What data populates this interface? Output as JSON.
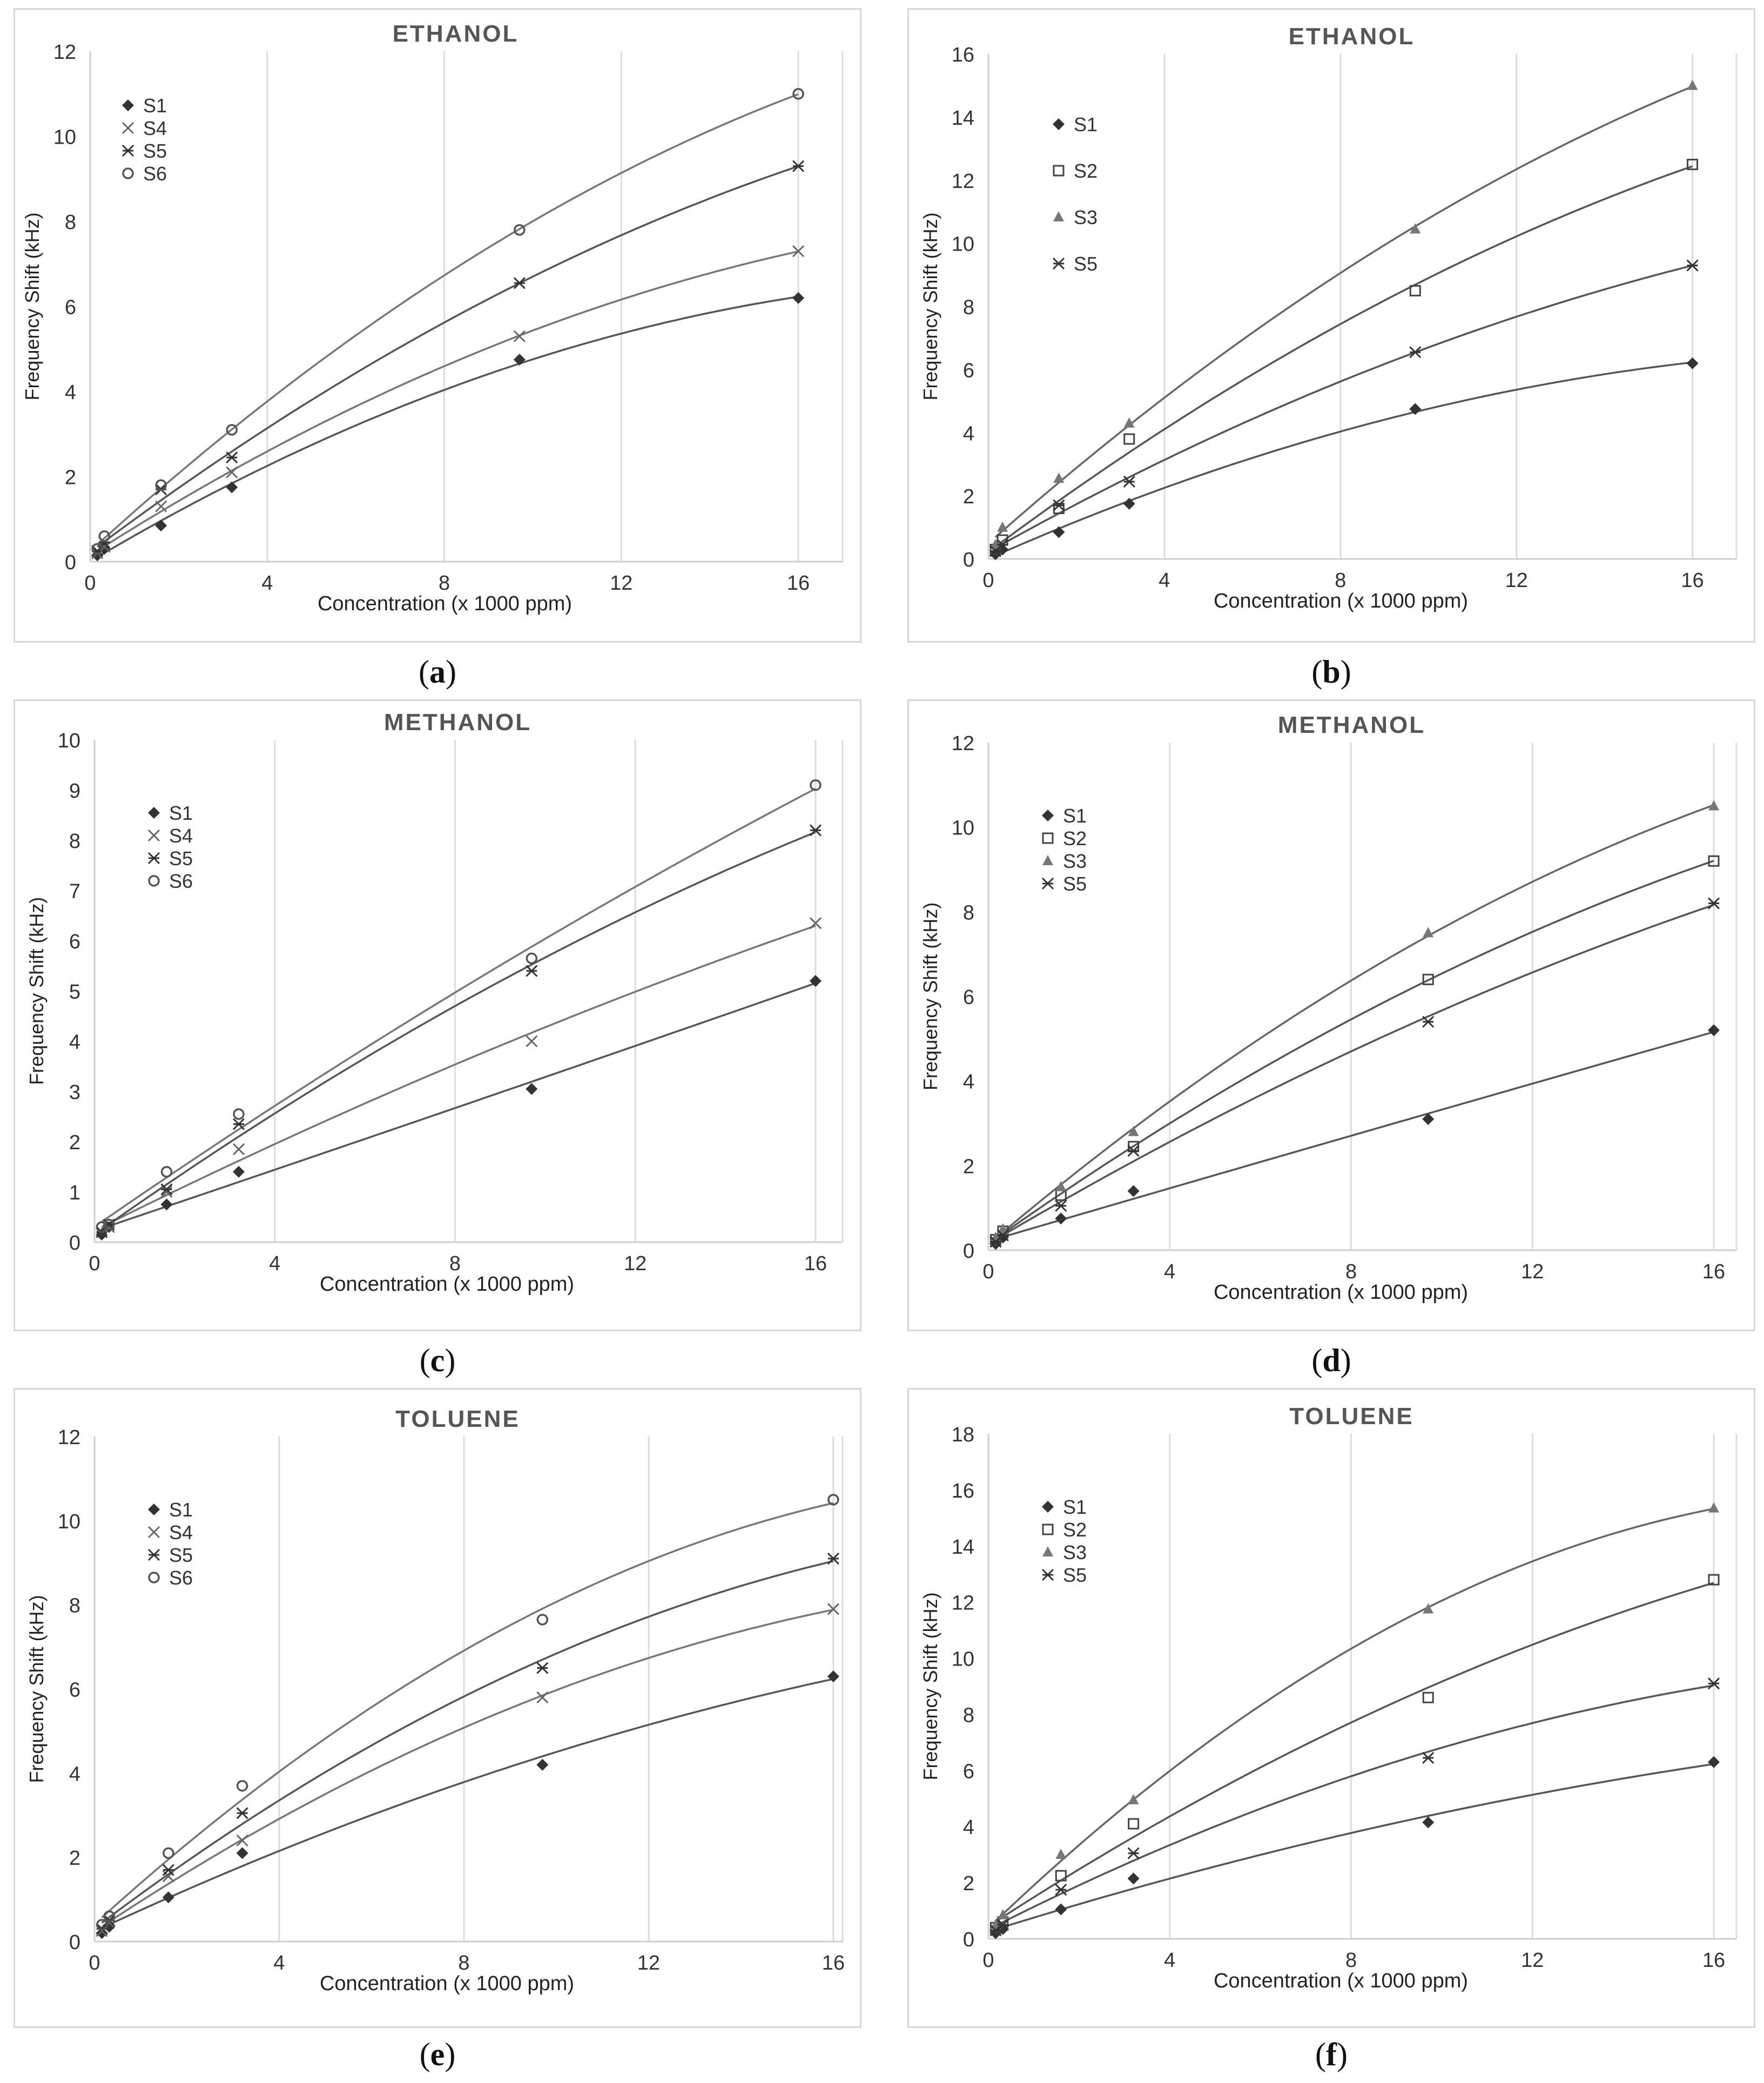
{
  "figure": {
    "panels": [
      {
        "id": "a",
        "label": "a"
      },
      {
        "id": "b",
        "label": "b"
      },
      {
        "id": "c",
        "label": "c"
      },
      {
        "id": "d",
        "label": "d"
      },
      {
        "id": "e",
        "label": "e"
      },
      {
        "id": "f",
        "label": "f"
      }
    ]
  },
  "chart_data": [
    {
      "id": "a",
      "type": "scatter",
      "title": "ETHANOL",
      "xlabel": "Concentration (x 1000 ppm)",
      "ylabel": "Frequency Shift (kHz)",
      "xlim": [
        0,
        17
      ],
      "ylim": [
        0,
        12
      ],
      "xticks": [
        0,
        4,
        8,
        12,
        16
      ],
      "yticks": [
        0,
        2,
        4,
        6,
        8,
        10,
        12
      ],
      "grid": "vertical",
      "legend_position": "top-left",
      "trendline": "polynomial",
      "x": [
        0.16,
        0.32,
        1.6,
        3.2,
        9.7,
        16
      ],
      "series": [
        {
          "name": "S1",
          "marker": "diamond",
          "values": [
            0.15,
            0.3,
            0.85,
            1.75,
            4.75,
            6.2
          ]
        },
        {
          "name": "S4",
          "marker": "x",
          "values": [
            0.2,
            0.35,
            1.3,
            2.1,
            5.3,
            7.3
          ]
        },
        {
          "name": "S5",
          "marker": "star",
          "values": [
            0.25,
            0.45,
            1.7,
            2.45,
            6.55,
            9.3
          ]
        },
        {
          "name": "S6",
          "marker": "circle",
          "values": [
            0.3,
            0.6,
            1.8,
            3.1,
            7.8,
            11.0
          ]
        }
      ]
    },
    {
      "id": "b",
      "type": "scatter",
      "title": "ETHANOL",
      "xlabel": "Concentration (x 1000 ppm)",
      "ylabel": "Frequency Shift (kHz)",
      "xlim": [
        0,
        17
      ],
      "ylim": [
        0,
        16
      ],
      "xticks": [
        0,
        4,
        8,
        12,
        16
      ],
      "yticks": [
        0,
        2,
        4,
        6,
        8,
        10,
        12,
        14,
        16
      ],
      "grid": "vertical",
      "legend_position": "top-left",
      "trendline": "polynomial",
      "x": [
        0.16,
        0.32,
        1.6,
        3.2,
        9.7,
        16
      ],
      "series": [
        {
          "name": "S1",
          "marker": "diamond",
          "values": [
            0.15,
            0.3,
            0.85,
            1.75,
            4.75,
            6.2
          ]
        },
        {
          "name": "S2",
          "marker": "square",
          "values": [
            0.3,
            0.6,
            1.6,
            3.8,
            8.5,
            12.5
          ]
        },
        {
          "name": "S3",
          "marker": "triangle",
          "values": [
            0.45,
            1.0,
            2.55,
            4.3,
            10.45,
            15.0
          ]
        },
        {
          "name": "S5",
          "marker": "star",
          "values": [
            0.25,
            0.45,
            1.7,
            2.45,
            6.55,
            9.3
          ]
        }
      ]
    },
    {
      "id": "c",
      "type": "scatter",
      "title": "METHANOL",
      "xlabel": "Concentration (x 1000 ppm)",
      "ylabel": "Frequency Shift (kHz)",
      "xlim": [
        0,
        16.6
      ],
      "ylim": [
        0,
        10
      ],
      "xticks": [
        0,
        4,
        8,
        12,
        16
      ],
      "yticks": [
        0,
        1,
        2,
        3,
        4,
        5,
        6,
        7,
        8,
        9,
        10
      ],
      "grid": "vertical",
      "legend_position": "top-left",
      "trendline": "polynomial",
      "x": [
        0.16,
        0.32,
        1.6,
        3.2,
        9.7,
        16
      ],
      "series": [
        {
          "name": "S1",
          "marker": "diamond",
          "values": [
            0.15,
            0.3,
            0.75,
            1.4,
            3.05,
            5.2
          ]
        },
        {
          "name": "S4",
          "marker": "x",
          "values": [
            0.2,
            0.3,
            1.0,
            1.85,
            4.0,
            6.35
          ]
        },
        {
          "name": "S5",
          "marker": "star",
          "values": [
            0.2,
            0.35,
            1.05,
            2.35,
            5.4,
            8.2
          ]
        },
        {
          "name": "S6",
          "marker": "circle",
          "values": [
            0.3,
            0.35,
            1.4,
            2.55,
            5.65,
            9.1
          ]
        }
      ]
    },
    {
      "id": "d",
      "type": "scatter",
      "title": "METHANOL",
      "xlabel": "Concentration (x 1000 ppm)",
      "ylabel": "Frequency Shift (kHz)",
      "xlim": [
        0,
        16.5
      ],
      "ylim": [
        0,
        12
      ],
      "xticks": [
        0,
        4,
        8,
        12,
        16
      ],
      "yticks": [
        0,
        2,
        4,
        6,
        8,
        10,
        12
      ],
      "grid": "vertical",
      "legend_position": "top-left",
      "trendline": "polynomial",
      "x": [
        0.16,
        0.32,
        1.6,
        3.2,
        9.7,
        16
      ],
      "series": [
        {
          "name": "S1",
          "marker": "diamond",
          "values": [
            0.15,
            0.3,
            0.75,
            1.4,
            3.1,
            5.2
          ]
        },
        {
          "name": "S2",
          "marker": "square",
          "values": [
            0.25,
            0.45,
            1.3,
            2.45,
            6.4,
            9.2
          ]
        },
        {
          "name": "S3",
          "marker": "triangle",
          "values": [
            0.3,
            0.5,
            1.5,
            2.8,
            7.5,
            10.5
          ]
        },
        {
          "name": "S5",
          "marker": "star",
          "values": [
            0.2,
            0.35,
            1.05,
            2.35,
            5.4,
            8.2
          ]
        }
      ]
    },
    {
      "id": "e",
      "type": "scatter",
      "title": "TOLUENE",
      "xlabel": "Concentration (x 1000 ppm)",
      "ylabel": "Frequency Shift (kHz)",
      "xlim": [
        0,
        16.2
      ],
      "ylim": [
        0,
        12
      ],
      "xticks": [
        0,
        4,
        8,
        12,
        16
      ],
      "yticks": [
        0,
        2,
        4,
        6,
        8,
        10,
        12
      ],
      "grid": "vertical",
      "legend_position": "top-left",
      "trendline": "polynomial",
      "x": [
        0.16,
        0.32,
        1.6,
        3.2,
        9.7,
        16
      ],
      "series": [
        {
          "name": "S1",
          "marker": "diamond",
          "values": [
            0.2,
            0.35,
            1.05,
            2.1,
            4.2,
            6.3
          ]
        },
        {
          "name": "S4",
          "marker": "x",
          "values": [
            0.25,
            0.45,
            1.55,
            2.4,
            5.8,
            7.9
          ]
        },
        {
          "name": "S5",
          "marker": "star",
          "values": [
            0.3,
            0.5,
            1.7,
            3.05,
            6.5,
            9.1
          ]
        },
        {
          "name": "S6",
          "marker": "circle",
          "values": [
            0.4,
            0.6,
            2.1,
            3.7,
            7.65,
            10.5
          ]
        }
      ]
    },
    {
      "id": "f",
      "type": "scatter",
      "title": "TOLUENE",
      "xlabel": "Concentration (x 1000 ppm)",
      "ylabel": "Frequency Shift (kHz)",
      "xlim": [
        0,
        16.5
      ],
      "ylim": [
        0,
        18
      ],
      "xticks": [
        0,
        4,
        8,
        12,
        16
      ],
      "yticks": [
        0,
        2,
        4,
        6,
        8,
        10,
        12,
        14,
        16,
        18
      ],
      "grid": "vertical",
      "legend_position": "top-left",
      "trendline": "polynomial",
      "x": [
        0.16,
        0.32,
        1.6,
        3.2,
        9.7,
        16
      ],
      "series": [
        {
          "name": "S1",
          "marker": "diamond",
          "values": [
            0.2,
            0.35,
            1.05,
            2.15,
            4.15,
            6.3
          ]
        },
        {
          "name": "S2",
          "marker": "square",
          "values": [
            0.4,
            0.6,
            2.25,
            4.1,
            8.6,
            12.8
          ]
        },
        {
          "name": "S3",
          "marker": "triangle",
          "values": [
            0.5,
            0.85,
            3.0,
            4.95,
            11.75,
            15.35
          ]
        },
        {
          "name": "S5",
          "marker": "star",
          "values": [
            0.3,
            0.5,
            1.75,
            3.05,
            6.45,
            9.1
          ]
        }
      ]
    }
  ]
}
